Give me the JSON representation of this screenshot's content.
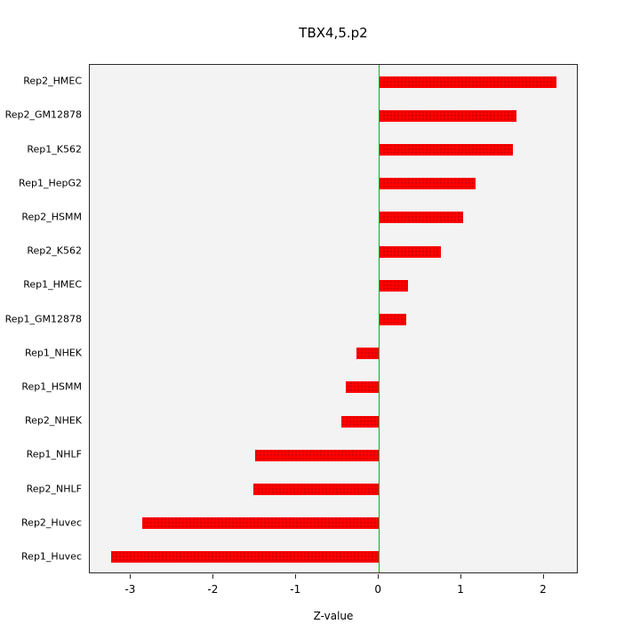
{
  "chart_data": {
    "type": "bar",
    "orientation": "horizontal",
    "title": "TBX4,5.p2",
    "xlabel": "Z-value",
    "categories": [
      "Rep2_HMEC",
      "Rep2_GM12878",
      "Rep1_K562",
      "Rep1_HepG2",
      "Rep2_HSMM",
      "Rep2_K562",
      "Rep1_HMEC",
      "Rep1_GM12878",
      "Rep1_NHEK",
      "Rep1_HSMM",
      "Rep2_NHEK",
      "Rep1_NHLF",
      "Rep2_NHLF",
      "Rep2_Huvec",
      "Rep1_Huvec"
    ],
    "values": [
      2.15,
      1.67,
      1.62,
      1.17,
      1.02,
      0.75,
      0.35,
      0.33,
      -0.27,
      -0.4,
      -0.45,
      -1.5,
      -1.52,
      -2.87,
      -3.24
    ],
    "xlim": [
      -3.5,
      2.42
    ],
    "x_ticks": [
      "-3",
      "-2",
      "-1",
      "0",
      "1",
      "2"
    ],
    "bar_color": "#ff0000",
    "zero_line_color": "#00bb00",
    "plot_bg_color": "#f3f3f3",
    "grid": false,
    "legend": null
  }
}
